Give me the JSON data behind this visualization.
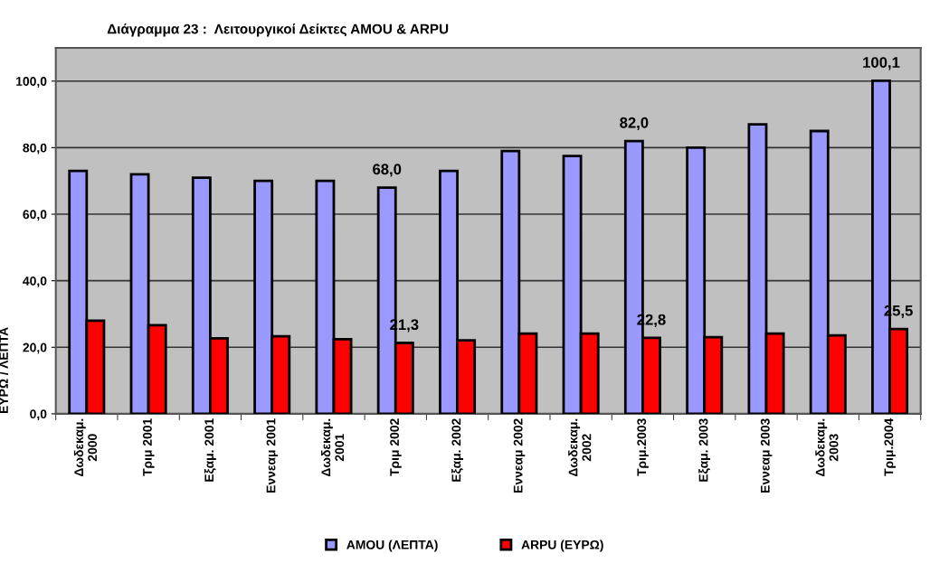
{
  "chart_data": {
    "type": "bar",
    "title": "Διάγραμμα 23 :  Λειτουργικοί Δείκτες AMOU & ARPU",
    "ylabel": "ΕΥΡΩ / ΛΕΠΤΑ",
    "categories": [
      "Δωδεκαμ.\n2000",
      "Τριμ 2001",
      "Εξαμ. 2001",
      "Εννεαμ 2001",
      "Δωδεκαμ.\n2001",
      "Τριμ 2002",
      "Εξαμ. 2002",
      "Εννεαμ 2002",
      "Δωδεκαμ.\n2002",
      "Τριμ.2003",
      "Εξαμ. 2003",
      "Εννεαμ 2003",
      "Δωδεκαμ.\n2003",
      "Τριμ.2004"
    ],
    "series": [
      {
        "name": "AMOU (ΛΕΠΤΑ)",
        "color": "#9999ff",
        "values": [
          73,
          72,
          71,
          70,
          70,
          68.0,
          73,
          79,
          77.5,
          82.0,
          80,
          87,
          85,
          100.1
        ],
        "value_labels": [
          null,
          null,
          null,
          null,
          null,
          "68,0",
          null,
          null,
          null,
          "82,0",
          null,
          null,
          null,
          "100,1"
        ]
      },
      {
        "name": "ARPU (ΕΥΡΩ)",
        "color": "#ff0000",
        "values": [
          28,
          26.6,
          22.7,
          23.3,
          22.4,
          21.3,
          22.1,
          24.1,
          24.1,
          22.8,
          23,
          24.1,
          23.6,
          25.5
        ],
        "value_labels": [
          null,
          null,
          null,
          null,
          null,
          "21,3",
          null,
          null,
          null,
          "22,8",
          null,
          null,
          null,
          "25,5"
        ]
      }
    ],
    "ylim": [
      0,
      110
    ],
    "yticks": [
      {
        "value": 0,
        "label": "0,0"
      },
      {
        "value": 20,
        "label": "20,0"
      },
      {
        "value": 40,
        "label": "40,0"
      },
      {
        "value": 60,
        "label": "60,0"
      },
      {
        "value": 80,
        "label": "80,0"
      },
      {
        "value": 100,
        "label": "100,0"
      }
    ],
    "grid": "y",
    "legend": "bottom"
  }
}
